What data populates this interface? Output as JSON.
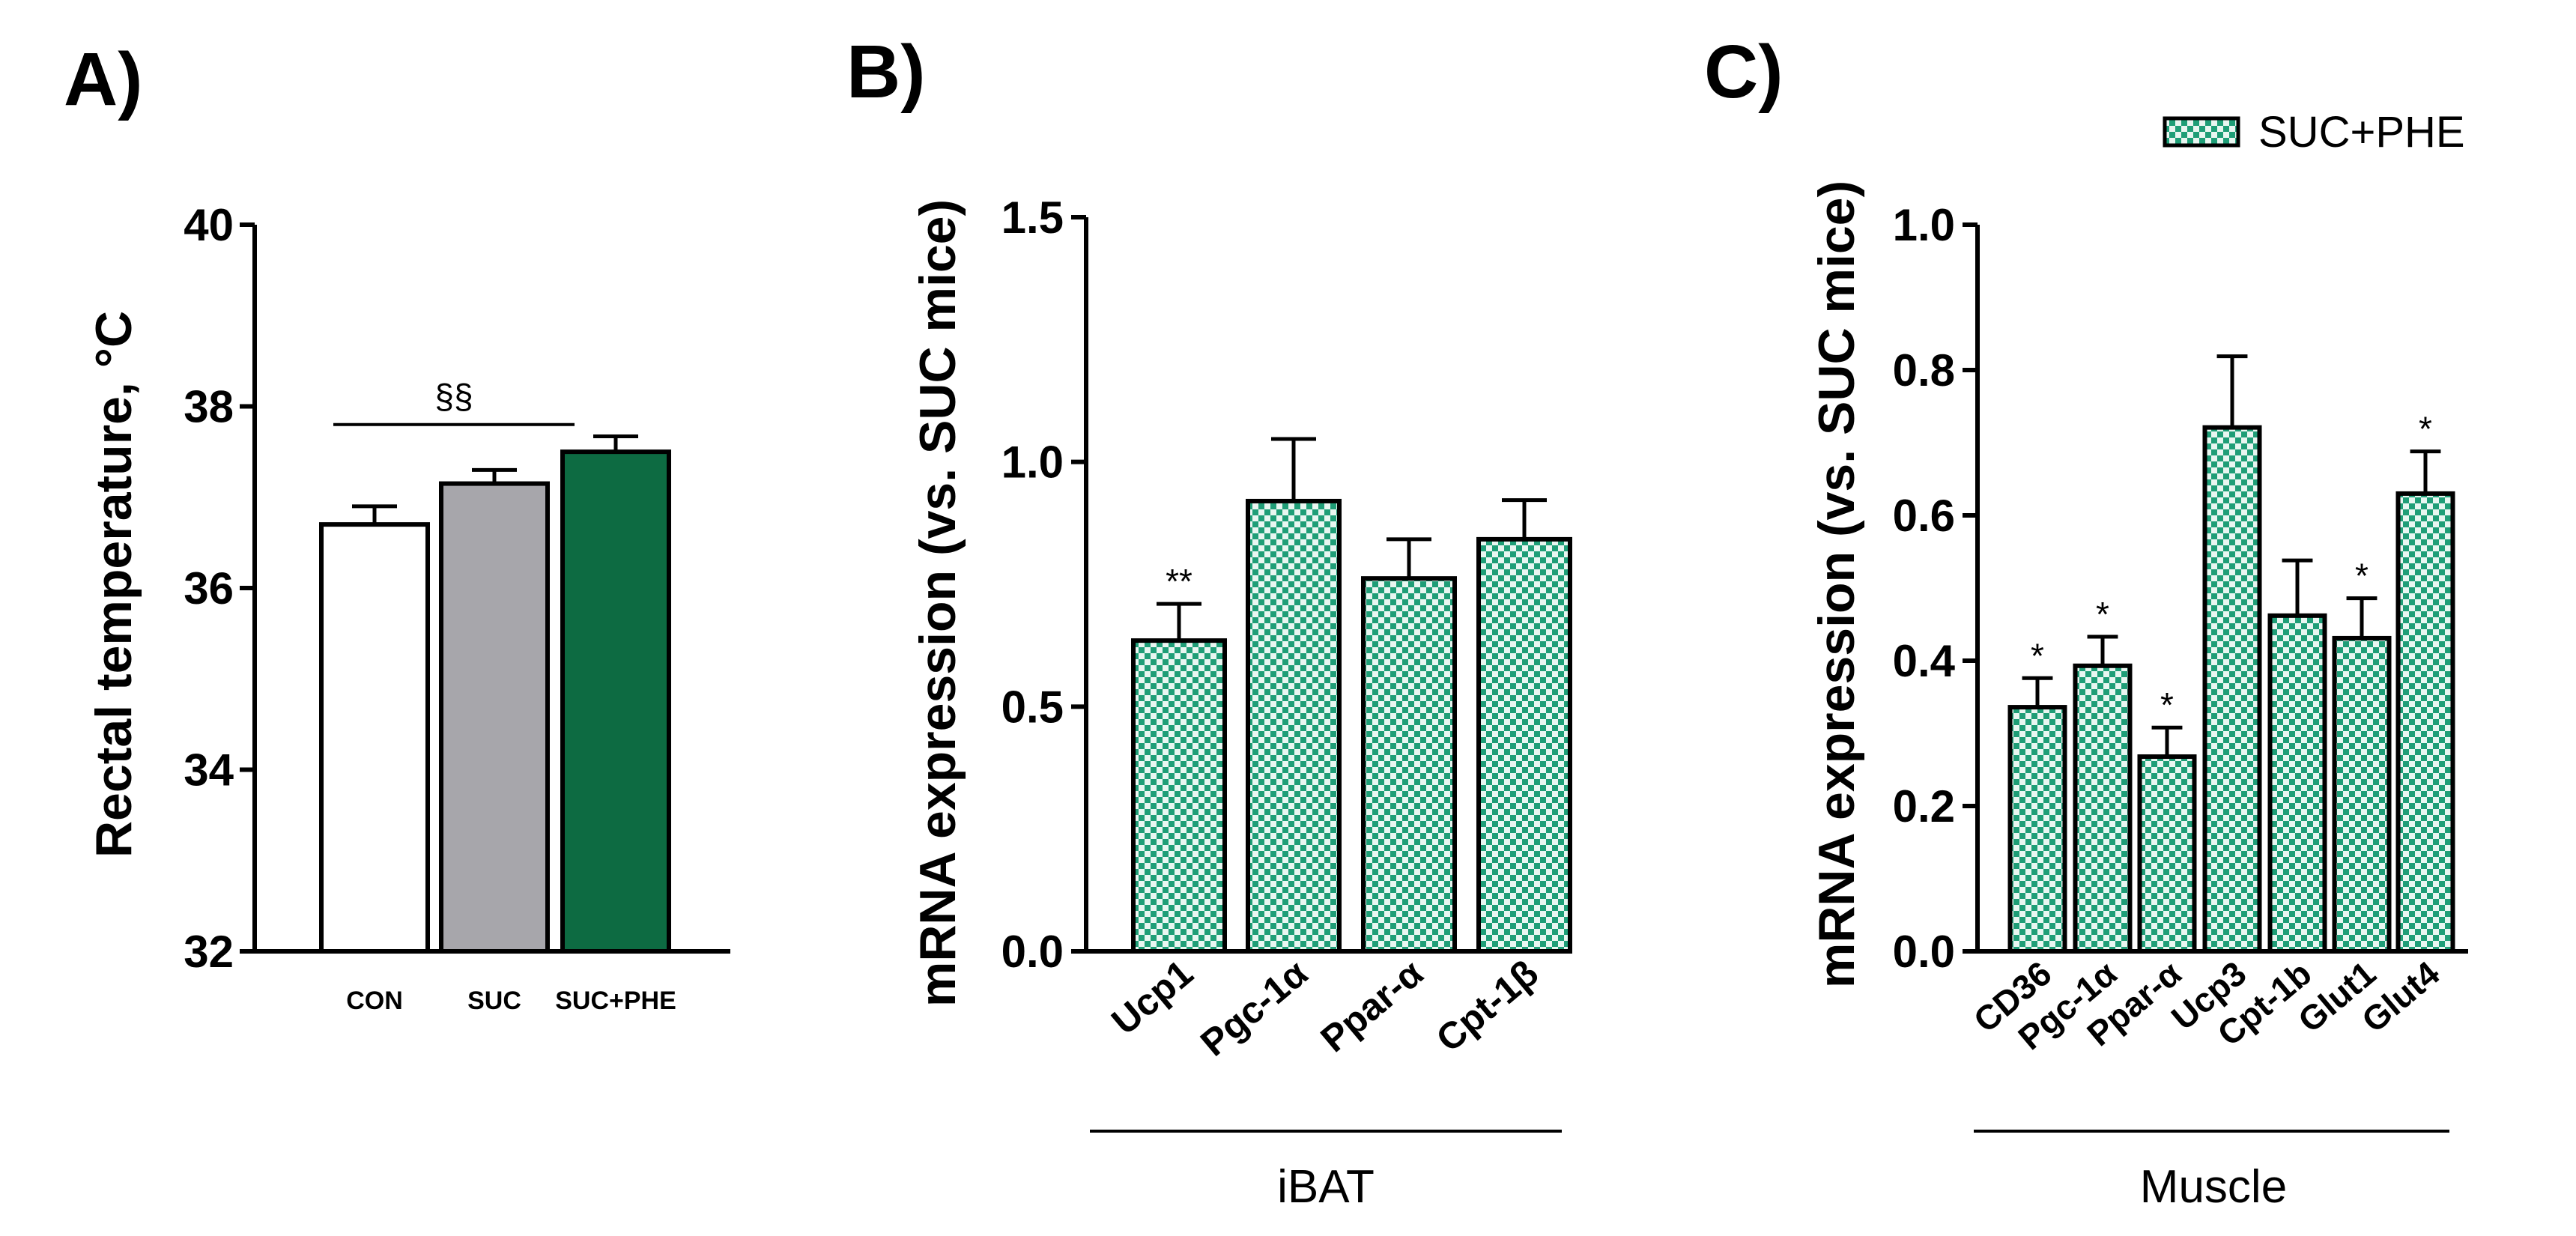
{
  "colors": {
    "con": "#ffffff",
    "suc": "#a7a6ab",
    "suc_phe": "#0d6b42",
    "pattern_green": "#1f9e77",
    "pattern_light": "#e9f6f1",
    "axis": "#000000"
  },
  "chart_data": [
    {
      "panel": "A)",
      "type": "bar",
      "ylabel": "Rectal temperature, °C",
      "ylim": [
        32,
        40
      ],
      "yticks": [
        "32",
        "34",
        "36",
        "38",
        "40"
      ],
      "categories": [
        "CON",
        "SUC",
        "SUC+PHE"
      ],
      "values": [
        36.7,
        37.15,
        37.5
      ],
      "errors": [
        0.2,
        0.15,
        0.17
      ],
      "fills": [
        "con",
        "suc",
        "suc_phe"
      ],
      "annotation": {
        "text": "§§",
        "from": 0,
        "to": 2,
        "y": 37.8
      }
    },
    {
      "panel": "B)",
      "type": "bar",
      "ylabel": "mRNA expression (vs. SUC mice)",
      "ylim": [
        0,
        1.5
      ],
      "yticks": [
        "0.0",
        "0.5",
        "1.0",
        "1.5"
      ],
      "group_label": "iBAT",
      "categories": [
        "Ucp1",
        "Pgc-1α",
        "Ppar-α",
        "Cpt-1β"
      ],
      "values": [
        0.635,
        0.92,
        0.762,
        0.842
      ],
      "errors": [
        0.075,
        0.127,
        0.08,
        0.08
      ],
      "significance": [
        "**",
        "",
        "",
        ""
      ]
    },
    {
      "panel": "C)",
      "type": "bar",
      "ylabel": "mRNA expression (vs. SUC mice)",
      "ylim": [
        0,
        1.0
      ],
      "yticks": [
        "0.0",
        "0.2",
        "0.4",
        "0.6",
        "0.8",
        "1.0"
      ],
      "group_label": "Muscle",
      "categories": [
        "CD36",
        "Pgc-1α",
        "Ppar-α",
        "Ucp3",
        "Cpt-1b",
        "Glut1",
        "Glut4"
      ],
      "values": [
        0.336,
        0.393,
        0.268,
        0.721,
        0.462,
        0.431,
        0.63
      ],
      "errors": [
        0.04,
        0.04,
        0.04,
        0.098,
        0.076,
        0.055,
        0.058
      ],
      "significance": [
        "*",
        "*",
        "*",
        "",
        "",
        "*",
        "*"
      ],
      "legend": "SUC+PHE"
    }
  ]
}
